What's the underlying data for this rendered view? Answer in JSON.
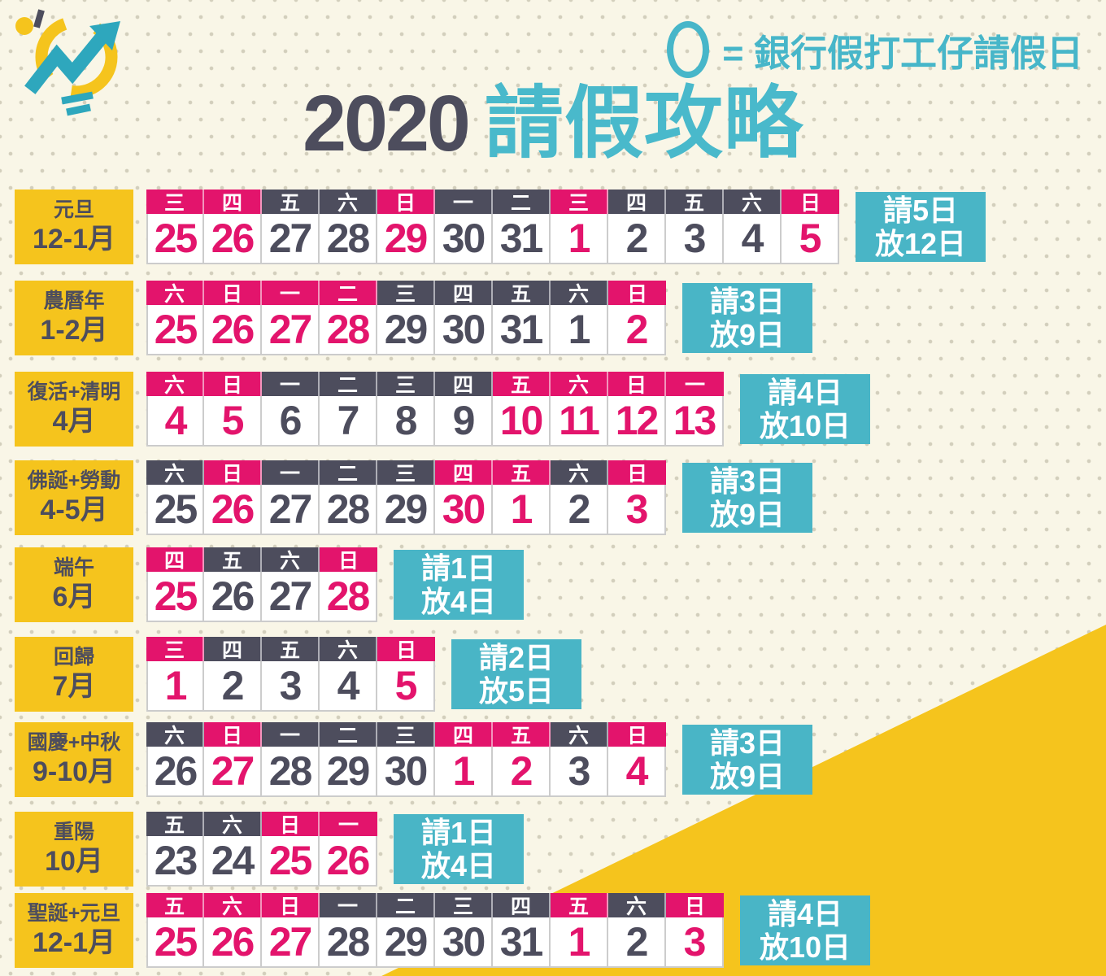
{
  "legend": {
    "symbol_icon": "circle-outline",
    "text": "= 銀行假打工仔請假日"
  },
  "title": {
    "year": "2020",
    "name": "請假攻略"
  },
  "icons": {
    "logo": "lightbulb-trend-arrow",
    "legend_symbol": "circle-outline"
  },
  "colors": {
    "holiday_pink": "#e3146c",
    "work_navy": "#4d4d5d",
    "accent_teal": "#49b5c6",
    "circle_teal": "#55c3d7",
    "highlight_yellow": "#f5c41d",
    "background_cream": "#f9f6e7"
  },
  "rows": [
    {
      "holiday": "元旦",
      "months": "12-1月",
      "request": "請5日",
      "off": "放12日",
      "days": [
        {
          "dow": "三",
          "date": "25",
          "type": "holiday",
          "circled": false
        },
        {
          "dow": "四",
          "date": "26",
          "type": "holiday",
          "circled": false
        },
        {
          "dow": "五",
          "date": "27",
          "type": "work",
          "circled": true
        },
        {
          "dow": "六",
          "date": "28",
          "type": "work",
          "circled": false
        },
        {
          "dow": "日",
          "date": "29",
          "type": "holiday",
          "circled": false
        },
        {
          "dow": "一",
          "date": "30",
          "type": "work",
          "circled": true
        },
        {
          "dow": "二",
          "date": "31",
          "type": "work",
          "circled": true
        },
        {
          "dow": "三",
          "date": "1",
          "type": "holiday",
          "circled": false
        },
        {
          "dow": "四",
          "date": "2",
          "type": "work",
          "circled": true
        },
        {
          "dow": "五",
          "date": "3",
          "type": "work",
          "circled": true
        },
        {
          "dow": "六",
          "date": "4",
          "type": "work",
          "circled": false
        },
        {
          "dow": "日",
          "date": "5",
          "type": "holiday",
          "circled": false
        }
      ]
    },
    {
      "holiday": "農曆年",
      "months": "1-2月",
      "request": "請3日",
      "off": "放9日",
      "days": [
        {
          "dow": "六",
          "date": "25",
          "type": "holiday",
          "circled": false
        },
        {
          "dow": "日",
          "date": "26",
          "type": "holiday",
          "circled": false
        },
        {
          "dow": "一",
          "date": "27",
          "type": "holiday",
          "circled": false
        },
        {
          "dow": "二",
          "date": "28",
          "type": "holiday",
          "circled": false
        },
        {
          "dow": "三",
          "date": "29",
          "type": "work",
          "circled": true
        },
        {
          "dow": "四",
          "date": "30",
          "type": "work",
          "circled": true
        },
        {
          "dow": "五",
          "date": "31",
          "type": "work",
          "circled": true
        },
        {
          "dow": "六",
          "date": "1",
          "type": "work",
          "circled": false
        },
        {
          "dow": "日",
          "date": "2",
          "type": "holiday",
          "circled": false
        }
      ]
    },
    {
      "holiday": "復活+清明",
      "months": "4月",
      "request": "請4日",
      "off": "放10日",
      "days": [
        {
          "dow": "六",
          "date": "4",
          "type": "holiday",
          "circled": false
        },
        {
          "dow": "日",
          "date": "5",
          "type": "holiday",
          "circled": false
        },
        {
          "dow": "一",
          "date": "6",
          "type": "work",
          "circled": true
        },
        {
          "dow": "二",
          "date": "7",
          "type": "work",
          "circled": true
        },
        {
          "dow": "三",
          "date": "8",
          "type": "work",
          "circled": true
        },
        {
          "dow": "四",
          "date": "9",
          "type": "work",
          "circled": true
        },
        {
          "dow": "五",
          "date": "10",
          "type": "holiday",
          "circled": false
        },
        {
          "dow": "六",
          "date": "11",
          "type": "holiday",
          "circled": false
        },
        {
          "dow": "日",
          "date": "12",
          "type": "holiday",
          "circled": false
        },
        {
          "dow": "一",
          "date": "13",
          "type": "holiday",
          "circled": false
        }
      ]
    },
    {
      "holiday": "佛誕+勞動",
      "months": "4-5月",
      "request": "請3日",
      "off": "放9日",
      "days": [
        {
          "dow": "六",
          "date": "25",
          "type": "work",
          "circled": false
        },
        {
          "dow": "日",
          "date": "26",
          "type": "holiday",
          "circled": false
        },
        {
          "dow": "一",
          "date": "27",
          "type": "work",
          "circled": true
        },
        {
          "dow": "二",
          "date": "28",
          "type": "work",
          "circled": true
        },
        {
          "dow": "三",
          "date": "29",
          "type": "work",
          "circled": true
        },
        {
          "dow": "四",
          "date": "30",
          "type": "holiday",
          "circled": false
        },
        {
          "dow": "五",
          "date": "1",
          "type": "holiday",
          "circled": false
        },
        {
          "dow": "六",
          "date": "2",
          "type": "work",
          "circled": false
        },
        {
          "dow": "日",
          "date": "3",
          "type": "holiday",
          "circled": false
        }
      ]
    },
    {
      "holiday": "端午",
      "months": "6月",
      "request": "請1日",
      "off": "放4日",
      "days": [
        {
          "dow": "四",
          "date": "25",
          "type": "holiday",
          "circled": false
        },
        {
          "dow": "五",
          "date": "26",
          "type": "work",
          "circled": true
        },
        {
          "dow": "六",
          "date": "27",
          "type": "work",
          "circled": false
        },
        {
          "dow": "日",
          "date": "28",
          "type": "holiday",
          "circled": false
        }
      ]
    },
    {
      "holiday": "回歸",
      "months": "7月",
      "request": "請2日",
      "off": "放5日",
      "days": [
        {
          "dow": "三",
          "date": "1",
          "type": "holiday",
          "circled": false
        },
        {
          "dow": "四",
          "date": "2",
          "type": "work",
          "circled": true
        },
        {
          "dow": "五",
          "date": "3",
          "type": "work",
          "circled": true
        },
        {
          "dow": "六",
          "date": "4",
          "type": "work",
          "circled": false
        },
        {
          "dow": "日",
          "date": "5",
          "type": "holiday",
          "circled": false
        }
      ]
    },
    {
      "holiday": "國慶+中秋",
      "months": "9-10月",
      "request": "請3日",
      "off": "放9日",
      "days": [
        {
          "dow": "六",
          "date": "26",
          "type": "work",
          "circled": false
        },
        {
          "dow": "日",
          "date": "27",
          "type": "holiday",
          "circled": false
        },
        {
          "dow": "一",
          "date": "28",
          "type": "work",
          "circled": true
        },
        {
          "dow": "二",
          "date": "29",
          "type": "work",
          "circled": true
        },
        {
          "dow": "三",
          "date": "30",
          "type": "work",
          "circled": true
        },
        {
          "dow": "四",
          "date": "1",
          "type": "holiday",
          "circled": false
        },
        {
          "dow": "五",
          "date": "2",
          "type": "holiday",
          "circled": false
        },
        {
          "dow": "六",
          "date": "3",
          "type": "work",
          "circled": false
        },
        {
          "dow": "日",
          "date": "4",
          "type": "holiday",
          "circled": false
        }
      ]
    },
    {
      "holiday": "重陽",
      "months": "10月",
      "request": "請1日",
      "off": "放4日",
      "days": [
        {
          "dow": "五",
          "date": "23",
          "type": "work",
          "circled": true
        },
        {
          "dow": "六",
          "date": "24",
          "type": "work",
          "circled": false
        },
        {
          "dow": "日",
          "date": "25",
          "type": "holiday",
          "circled": false
        },
        {
          "dow": "一",
          "date": "26",
          "type": "holiday",
          "circled": false
        }
      ]
    },
    {
      "holiday": "聖誕+元旦",
      "months": "12-1月",
      "request": "請4日",
      "off": "放10日",
      "days": [
        {
          "dow": "五",
          "date": "25",
          "type": "holiday",
          "circled": false
        },
        {
          "dow": "六",
          "date": "26",
          "type": "holiday",
          "circled": false
        },
        {
          "dow": "日",
          "date": "27",
          "type": "holiday",
          "circled": false
        },
        {
          "dow": "一",
          "date": "28",
          "type": "work",
          "circled": true
        },
        {
          "dow": "二",
          "date": "29",
          "type": "work",
          "circled": true
        },
        {
          "dow": "三",
          "date": "30",
          "type": "work",
          "circled": true
        },
        {
          "dow": "四",
          "date": "31",
          "type": "work",
          "circled": true
        },
        {
          "dow": "五",
          "date": "1",
          "type": "holiday",
          "circled": false
        },
        {
          "dow": "六",
          "date": "2",
          "type": "work",
          "circled": false
        },
        {
          "dow": "日",
          "date": "3",
          "type": "holiday",
          "circled": false
        }
      ]
    }
  ]
}
